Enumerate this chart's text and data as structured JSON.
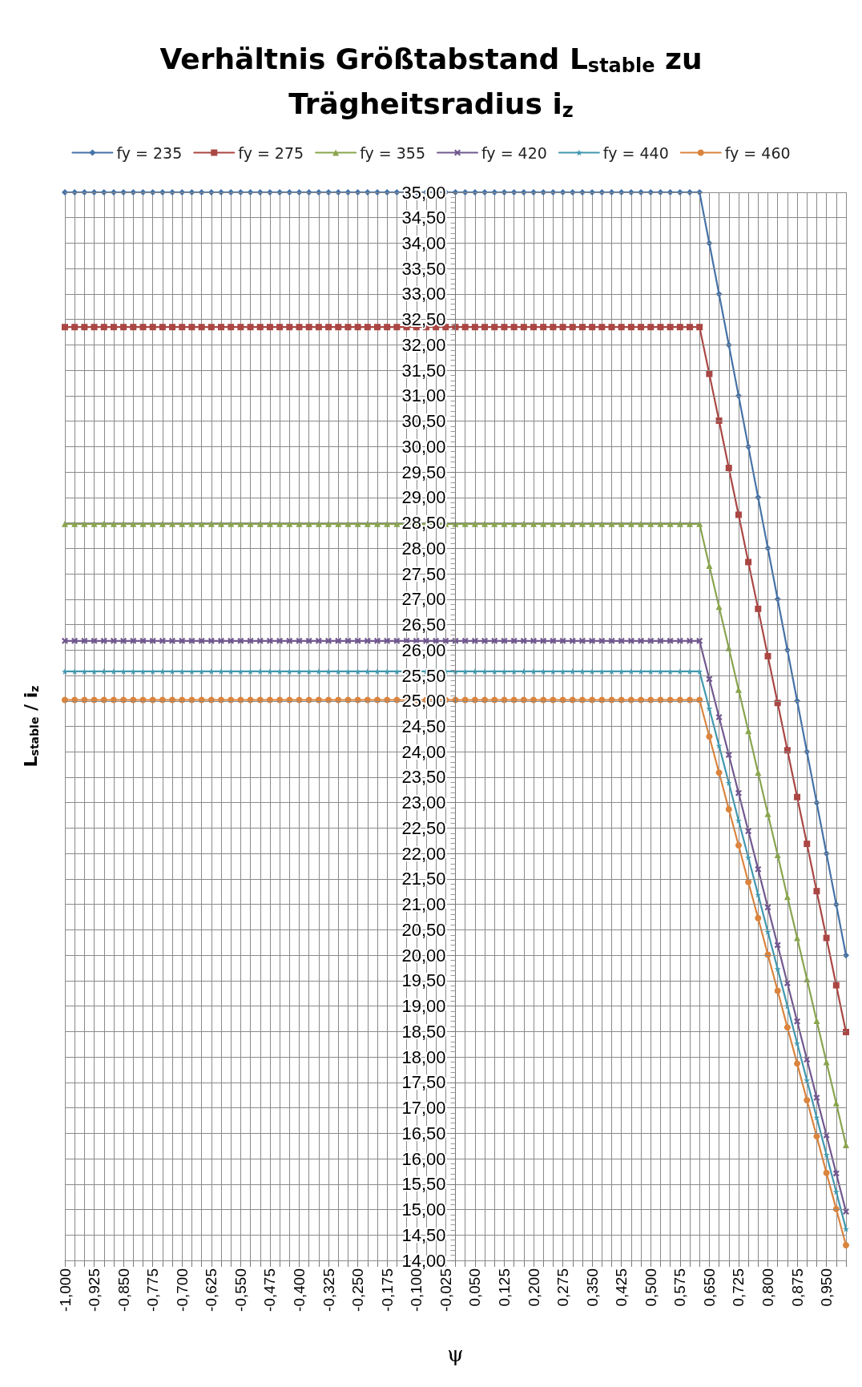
{
  "chart_data": {
    "type": "line",
    "title": "Verhältnis Größtabstand L$_{stable}$ zu\nTrägheitsradius i$_{z}$",
    "xlabel": "ψ",
    "ylabel": "L$_{stable}$ / i$_{z}$",
    "categories": [
      "-1,000",
      null,
      null,
      "-0,925",
      null,
      null,
      "-0,850",
      null,
      null,
      "-0,775",
      null,
      null,
      "-0,700",
      null,
      null,
      "-0,625",
      null,
      null,
      "-0,550",
      null,
      null,
      "-0,475",
      null,
      null,
      "-0,400",
      null,
      null,
      "-0,325",
      null,
      null,
      "-0,250",
      null,
      null,
      "-0,175",
      null,
      null,
      "-0,100",
      null,
      null,
      "-0,025",
      null,
      null,
      "0,050",
      null,
      null,
      "0,125",
      null,
      null,
      "0,200",
      null,
      null,
      "0,275",
      null,
      null,
      "0,350",
      null,
      null,
      "0,425",
      null,
      null,
      "0,500",
      null,
      null,
      "0,575",
      null,
      null,
      "0,650",
      null,
      null,
      "0,725",
      null,
      null,
      "0,800",
      null,
      null,
      "0,875",
      null,
      null,
      "0,950",
      null,
      null
    ],
    "ylim": [
      14,
      35
    ],
    "yticks": [
      {
        "value": 14,
        "label": "14,00"
      },
      {
        "value": 14.5,
        "label": "14,50"
      },
      {
        "value": 15,
        "label": "15,00"
      },
      {
        "value": 15.5,
        "label": "15,50"
      },
      {
        "value": 16,
        "label": "16,00"
      },
      {
        "value": 16.5,
        "label": "16,50"
      },
      {
        "value": 17,
        "label": "17,00"
      },
      {
        "value": 17.5,
        "label": "17,50"
      },
      {
        "value": 18,
        "label": "18,00"
      },
      {
        "value": 18.5,
        "label": "18,50"
      },
      {
        "value": 19,
        "label": "19,00"
      },
      {
        "value": 19.5,
        "label": "19,50"
      },
      {
        "value": 20,
        "label": "20,00"
      },
      {
        "value": 20.5,
        "label": "20,50"
      },
      {
        "value": 21,
        "label": "21,00"
      },
      {
        "value": 21.5,
        "label": "21,50"
      },
      {
        "value": 22,
        "label": "22,00"
      },
      {
        "value": 22.5,
        "label": "22,50"
      },
      {
        "value": 23,
        "label": "23,00"
      },
      {
        "value": 23.5,
        "label": "23,50"
      },
      {
        "value": 24,
        "label": "24,00"
      },
      {
        "value": 24.5,
        "label": "24,50"
      },
      {
        "value": 25,
        "label": "25,00"
      },
      {
        "value": 25.5,
        "label": "25,50"
      },
      {
        "value": 26,
        "label": "26,00"
      },
      {
        "value": 26.5,
        "label": "26,50"
      },
      {
        "value": 27,
        "label": "27,00"
      },
      {
        "value": 27.5,
        "label": "27,50"
      },
      {
        "value": 28,
        "label": "28,00"
      },
      {
        "value": 28.5,
        "label": "28,50"
      },
      {
        "value": 29,
        "label": "29,00"
      },
      {
        "value": 29.5,
        "label": "29,50"
      },
      {
        "value": 30,
        "label": "30,00"
      },
      {
        "value": 30.5,
        "label": "30,50"
      },
      {
        "value": 31,
        "label": "31,00"
      },
      {
        "value": 31.5,
        "label": "31,50"
      },
      {
        "value": 32,
        "label": "32,00"
      },
      {
        "value": 32.5,
        "label": "32,50"
      },
      {
        "value": 33,
        "label": "33,00"
      },
      {
        "value": 33.5,
        "label": "33,50"
      },
      {
        "value": 34,
        "label": "34,00"
      },
      {
        "value": 34.5,
        "label": "34,50"
      },
      {
        "value": 35,
        "label": "35,00"
      }
    ],
    "grid": true,
    "legend": "top",
    "line_style": "solid",
    "series": [
      {
        "name": "fy = 235",
        "color": "#4572a7",
        "marker": "diamond",
        "values": [
          35,
          35,
          35,
          35,
          35,
          35,
          35,
          35,
          35,
          35,
          35,
          35,
          35,
          35,
          35,
          35,
          35,
          35,
          35,
          35,
          35,
          35,
          35,
          35,
          35,
          35,
          35,
          35,
          35,
          35,
          35,
          35,
          35,
          35,
          35,
          35,
          35,
          35,
          35,
          35,
          35,
          35,
          35,
          35,
          35,
          35,
          35,
          35,
          35,
          35,
          35,
          35,
          35,
          35,
          35,
          35,
          35,
          35,
          35,
          35,
          35,
          35,
          35,
          35,
          35,
          35,
          34,
          33,
          32,
          31,
          30,
          29,
          28,
          27,
          26,
          25,
          24,
          23,
          22,
          21,
          20
        ]
      },
      {
        "name": "fy = 275",
        "color": "#aa4643",
        "marker": "square",
        "values": [
          32.35,
          32.35,
          32.35,
          32.35,
          32.35,
          32.35,
          32.35,
          32.35,
          32.35,
          32.35,
          32.35,
          32.35,
          32.35,
          32.35,
          32.35,
          32.35,
          32.35,
          32.35,
          32.35,
          32.35,
          32.35,
          32.35,
          32.35,
          32.35,
          32.35,
          32.35,
          32.35,
          32.35,
          32.35,
          32.35,
          32.35,
          32.35,
          32.35,
          32.35,
          32.35,
          32.35,
          32.35,
          32.35,
          32.35,
          32.35,
          32.35,
          32.35,
          32.35,
          32.35,
          32.35,
          32.35,
          32.35,
          32.35,
          32.35,
          32.35,
          32.35,
          32.35,
          32.35,
          32.35,
          32.35,
          32.35,
          32.35,
          32.35,
          32.35,
          32.35,
          32.35,
          32.35,
          32.35,
          32.35,
          32.35,
          32.35,
          31.43,
          30.51,
          29.58,
          28.66,
          27.73,
          26.81,
          25.88,
          24.96,
          24.03,
          23.11,
          22.19,
          21.26,
          20.34,
          19.41,
          18.49
        ]
      },
      {
        "name": "fy = 355",
        "color": "#89a54e",
        "marker": "triangle",
        "values": [
          28.48,
          28.48,
          28.48,
          28.48,
          28.48,
          28.48,
          28.48,
          28.48,
          28.48,
          28.48,
          28.48,
          28.48,
          28.48,
          28.48,
          28.48,
          28.48,
          28.48,
          28.48,
          28.48,
          28.48,
          28.48,
          28.48,
          28.48,
          28.48,
          28.48,
          28.48,
          28.48,
          28.48,
          28.48,
          28.48,
          28.48,
          28.48,
          28.48,
          28.48,
          28.48,
          28.48,
          28.48,
          28.48,
          28.48,
          28.48,
          28.48,
          28.48,
          28.48,
          28.48,
          28.48,
          28.48,
          28.48,
          28.48,
          28.48,
          28.48,
          28.48,
          28.48,
          28.48,
          28.48,
          28.48,
          28.48,
          28.48,
          28.48,
          28.48,
          28.48,
          28.48,
          28.48,
          28.48,
          28.48,
          28.48,
          28.48,
          27.66,
          26.85,
          26.04,
          25.22,
          24.41,
          23.59,
          22.78,
          21.97,
          21.15,
          20.34,
          19.53,
          18.71,
          17.9,
          17.09,
          16.27
        ]
      },
      {
        "name": "fy = 420",
        "color": "#71588f",
        "marker": "cross",
        "values": [
          26.18,
          26.18,
          26.18,
          26.18,
          26.18,
          26.18,
          26.18,
          26.18,
          26.18,
          26.18,
          26.18,
          26.18,
          26.18,
          26.18,
          26.18,
          26.18,
          26.18,
          26.18,
          26.18,
          26.18,
          26.18,
          26.18,
          26.18,
          26.18,
          26.18,
          26.18,
          26.18,
          26.18,
          26.18,
          26.18,
          26.18,
          26.18,
          26.18,
          26.18,
          26.18,
          26.18,
          26.18,
          26.18,
          26.18,
          26.18,
          26.18,
          26.18,
          26.18,
          26.18,
          26.18,
          26.18,
          26.18,
          26.18,
          26.18,
          26.18,
          26.18,
          26.18,
          26.18,
          26.18,
          26.18,
          26.18,
          26.18,
          26.18,
          26.18,
          26.18,
          26.18,
          26.18,
          26.18,
          26.18,
          26.18,
          26.18,
          25.43,
          24.68,
          23.94,
          23.19,
          22.44,
          21.69,
          20.94,
          20.2,
          19.45,
          18.7,
          17.95,
          17.2,
          16.46,
          15.71,
          14.96
        ]
      },
      {
        "name": "fy = 440",
        "color": "#4198af",
        "marker": "star",
        "values": [
          25.58,
          25.58,
          25.58,
          25.58,
          25.58,
          25.58,
          25.58,
          25.58,
          25.58,
          25.58,
          25.58,
          25.58,
          25.58,
          25.58,
          25.58,
          25.58,
          25.58,
          25.58,
          25.58,
          25.58,
          25.58,
          25.58,
          25.58,
          25.58,
          25.58,
          25.58,
          25.58,
          25.58,
          25.58,
          25.58,
          25.58,
          25.58,
          25.58,
          25.58,
          25.58,
          25.58,
          25.58,
          25.58,
          25.58,
          25.58,
          25.58,
          25.58,
          25.58,
          25.58,
          25.58,
          25.58,
          25.58,
          25.58,
          25.58,
          25.58,
          25.58,
          25.58,
          25.58,
          25.58,
          25.58,
          25.58,
          25.58,
          25.58,
          25.58,
          25.58,
          25.58,
          25.58,
          25.58,
          25.58,
          25.58,
          25.58,
          24.85,
          24.12,
          23.39,
          22.65,
          21.92,
          21.19,
          20.46,
          19.73,
          19,
          18.27,
          17.54,
          16.81,
          16.08,
          15.35,
          14.62
        ]
      },
      {
        "name": "fy = 460",
        "color": "#db843d",
        "marker": "circle",
        "values": [
          25.02,
          25.02,
          25.02,
          25.02,
          25.02,
          25.02,
          25.02,
          25.02,
          25.02,
          25.02,
          25.02,
          25.02,
          25.02,
          25.02,
          25.02,
          25.02,
          25.02,
          25.02,
          25.02,
          25.02,
          25.02,
          25.02,
          25.02,
          25.02,
          25.02,
          25.02,
          25.02,
          25.02,
          25.02,
          25.02,
          25.02,
          25.02,
          25.02,
          25.02,
          25.02,
          25.02,
          25.02,
          25.02,
          25.02,
          25.02,
          25.02,
          25.02,
          25.02,
          25.02,
          25.02,
          25.02,
          25.02,
          25.02,
          25.02,
          25.02,
          25.02,
          25.02,
          25.02,
          25.02,
          25.02,
          25.02,
          25.02,
          25.02,
          25.02,
          25.02,
          25.02,
          25.02,
          25.02,
          25.02,
          25.02,
          25.02,
          24.3,
          23.59,
          22.87,
          22.16,
          21.44,
          20.73,
          20.01,
          19.3,
          18.58,
          17.87,
          17.15,
          16.44,
          15.72,
          15.01,
          14.3
        ]
      }
    ]
  }
}
